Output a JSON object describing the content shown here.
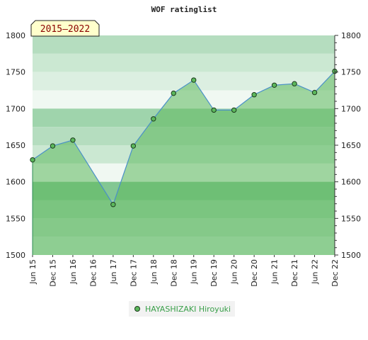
{
  "chart_data": {
    "type": "area",
    "title": "WOF ratinglist",
    "period_label": "2015–2022",
    "x": [
      "Jun 15",
      "Dec 15",
      "Jun 16",
      "Dec 16",
      "Jun 17",
      "Dec 17",
      "Jun 18",
      "Dec 18",
      "Jun 19",
      "Dec 19",
      "Jun 20",
      "Dec 20",
      "Jun 21",
      "Dec 21",
      "Jun 22",
      "Dec 22"
    ],
    "series": [
      {
        "name": "HAYASHIZAKI Hiroyuki",
        "values": [
          1630,
          1649,
          1657,
          null,
          1569,
          1649,
          1686,
          1721,
          1739,
          1698,
          1698,
          1719,
          1732,
          1734,
          1722,
          1751
        ]
      }
    ],
    "ylim": [
      1500,
      1800
    ],
    "yticks": [
      1500,
      1550,
      1600,
      1650,
      1700,
      1750,
      1800
    ],
    "y_axis_sides": [
      "left",
      "right"
    ],
    "colors": {
      "line": "#4a90c8",
      "fill": "#5cb85c",
      "marker": "#5cb85c",
      "legend_text": "#3aa04a",
      "period_badge_bg": "#ffffcc",
      "period_badge_text": "#8b0000"
    }
  }
}
